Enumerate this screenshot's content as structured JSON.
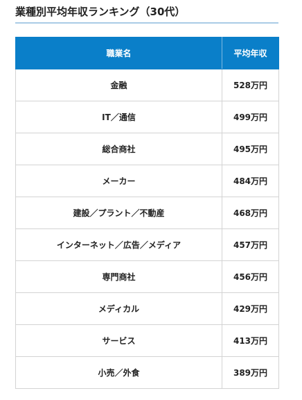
{
  "title": "業種別平均年収ランキング（30代）",
  "table": {
    "headers": {
      "industry": "職業名",
      "income": "平均年収"
    },
    "rows": [
      {
        "industry": "金融",
        "income": "528万円"
      },
      {
        "industry": "IT／通信",
        "income": "499万円"
      },
      {
        "industry": "総合商社",
        "income": "495万円"
      },
      {
        "industry": "メーカー",
        "income": "484万円"
      },
      {
        "industry": "建設／プラント／不動産",
        "income": "468万円"
      },
      {
        "industry": "インターネット／広告／メディア",
        "income": "457万円"
      },
      {
        "industry": "専門商社",
        "income": "456万円"
      },
      {
        "industry": "メディカル",
        "income": "429万円"
      },
      {
        "industry": "サービス",
        "income": "413万円"
      },
      {
        "industry": "小売／外食",
        "income": "389万円"
      }
    ]
  },
  "colors": {
    "header_background": "#0a7fc9",
    "title_underline": "#a9cbe6",
    "cell_border": "#d3d3d3"
  }
}
